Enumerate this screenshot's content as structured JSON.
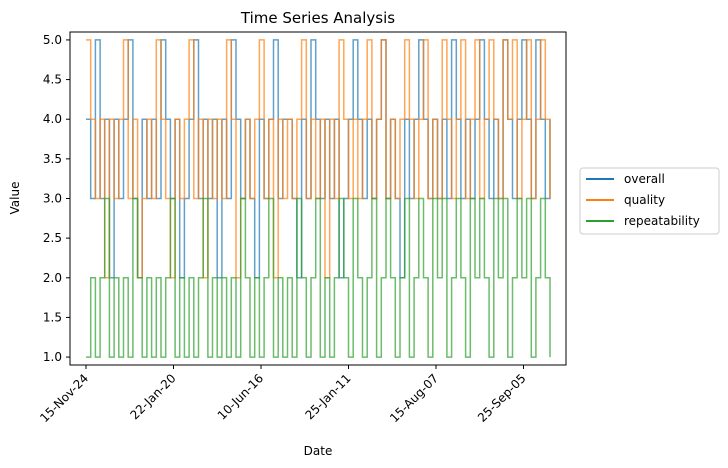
{
  "chart_data": {
    "type": "line",
    "title": "Time Series Analysis",
    "xlabel": "Date",
    "ylabel": "Value",
    "ylim": [
      0.9,
      5.1
    ],
    "yticks": [
      1.0,
      1.5,
      2.0,
      2.5,
      3.0,
      3.5,
      4.0,
      4.5,
      5.0
    ],
    "ytick_labels": [
      "1.0",
      "1.5",
      "2.0",
      "2.5",
      "3.0",
      "3.5",
      "4.0",
      "4.5",
      "5.0"
    ],
    "xtick_labels": [
      "15-Nov-24",
      "22-Jan-20",
      "10-Jun-16",
      "25-Jan-11",
      "15-Aug-07",
      "25-Sep-05"
    ],
    "grid": false,
    "legend": {
      "placement": "center-right outside",
      "entries": [
        "overall",
        "quality",
        "repeatability"
      ]
    },
    "series": [
      {
        "name": "overall",
        "color": "#1f77b4",
        "opacity": 0.7,
        "values": [
          4,
          3,
          5,
          3,
          4,
          2,
          4,
          3,
          4,
          5,
          3,
          2,
          4,
          3,
          4,
          3,
          5,
          4,
          3,
          4,
          2,
          3,
          4,
          5,
          3,
          4,
          3,
          4,
          2,
          4,
          3,
          5,
          4,
          3,
          4,
          3,
          2,
          4,
          3,
          4,
          5,
          3,
          4,
          4,
          3,
          2,
          4,
          3,
          5,
          4,
          3,
          4,
          3,
          4,
          2,
          3,
          4,
          5,
          4,
          3,
          4,
          3,
          4,
          5,
          3,
          4,
          3,
          2,
          4,
          3,
          4,
          5,
          4,
          3,
          4,
          3,
          4,
          3,
          5,
          4,
          3,
          4,
          3,
          4,
          5,
          4,
          3,
          4,
          3,
          5,
          4,
          3,
          4,
          5,
          4,
          3,
          5,
          4,
          3,
          4
        ]
      },
      {
        "name": "quality",
        "color": "#ff7f0e",
        "opacity": 0.7,
        "values": [
          5,
          4,
          3,
          4,
          2,
          4,
          3,
          4,
          5,
          3,
          4,
          2,
          3,
          4,
          3,
          5,
          4,
          3,
          2,
          4,
          3,
          4,
          5,
          3,
          4,
          2,
          4,
          3,
          4,
          3,
          5,
          4,
          2,
          3,
          4,
          3,
          4,
          5,
          3,
          4,
          2,
          4,
          3,
          4,
          3,
          4,
          5,
          3,
          4,
          3,
          4,
          2,
          4,
          3,
          5,
          4,
          3,
          4,
          3,
          4,
          5,
          3,
          4,
          5,
          3,
          4,
          3,
          4,
          5,
          4,
          3,
          4,
          5,
          3,
          4,
          3,
          5,
          4,
          3,
          4,
          5,
          3,
          4,
          5,
          3,
          4,
          5,
          4,
          3,
          5,
          4,
          5,
          3,
          4,
          5,
          3,
          4,
          5,
          4,
          3
        ]
      },
      {
        "name": "repeatability",
        "color": "#2ca02c",
        "opacity": 0.7,
        "values": [
          1,
          2,
          1,
          2,
          3,
          1,
          2,
          1,
          2,
          1,
          3,
          2,
          1,
          2,
          1,
          2,
          1,
          2,
          3,
          1,
          2,
          1,
          2,
          1,
          2,
          3,
          1,
          2,
          1,
          2,
          1,
          2,
          1,
          3,
          2,
          1,
          2,
          1,
          2,
          3,
          1,
          2,
          1,
          2,
          1,
          3,
          2,
          1,
          2,
          3,
          1,
          2,
          1,
          2,
          3,
          2,
          1,
          3,
          2,
          1,
          2,
          3,
          1,
          2,
          3,
          2,
          1,
          2,
          3,
          1,
          2,
          3,
          2,
          1,
          3,
          2,
          3,
          1,
          2,
          3,
          2,
          1,
          3,
          2,
          3,
          2,
          1,
          3,
          2,
          3,
          1,
          2,
          3,
          2,
          3,
          1,
          2,
          3,
          2,
          1
        ]
      }
    ]
  }
}
